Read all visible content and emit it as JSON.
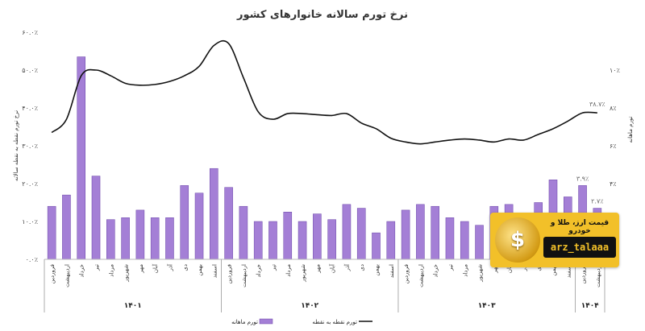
{
  "chart_data": {
    "type": "bar",
    "title": "نرخ تورم سالانه خانوارهای کشور",
    "ylabel": "نرخ تورم نقطه به نقطه سالانه",
    "y2label": "تورم ماهانه",
    "ylim": [
      0,
      60
    ],
    "y2lim": [
      0,
      12
    ],
    "yticks": [
      "۰.۰٪",
      "۱۰.۰٪",
      "۲۰.۰٪",
      "۳۰.۰٪",
      "۴۰.۰٪",
      "۵۰.۰٪",
      "۶۰.۰٪"
    ],
    "y2ticks": [
      "۰٪",
      "۲٪",
      "۴٪",
      "۶٪",
      "۸٪",
      "۱۰٪"
    ],
    "categories": [
      "فروردین",
      "اردیبهشت",
      "خرداد",
      "تیر",
      "مرداد",
      "شهریور",
      "مهر",
      "آبان",
      "آذر",
      "دی",
      "بهمن",
      "اسفند",
      "فروردین",
      "اردیبهشت",
      "خرداد",
      "تیر",
      "مرداد",
      "شهریور",
      "مهر",
      "آبان",
      "آذر",
      "دی",
      "بهمن",
      "اسفند",
      "فروردین",
      "اردیبهشت",
      "خرداد",
      "تیر",
      "مرداد",
      "شهریور",
      "مهر",
      "آبان",
      "آذر",
      "دی",
      "بهمن",
      "اسفند",
      "فروردین",
      "اردیبهشت"
    ],
    "years": [
      {
        "label": "۱۴۰۱",
        "start": 0,
        "end": 11
      },
      {
        "label": "۱۴۰۲",
        "start": 12,
        "end": 23
      },
      {
        "label": "۱۴۰۳",
        "start": 24,
        "end": 35
      },
      {
        "label": "۱۴۰۴",
        "start": 36,
        "end": 37
      }
    ],
    "series": [
      {
        "name": "تورم ماهانه",
        "type": "bar",
        "axis": "right",
        "color": "#a47fd6",
        "values": [
          2.8,
          3.4,
          10.7,
          4.4,
          2.1,
          2.2,
          2.6,
          2.2,
          2.2,
          3.9,
          3.5,
          4.8,
          3.8,
          2.8,
          2.0,
          2.0,
          2.5,
          2.0,
          2.4,
          2.1,
          2.9,
          2.7,
          1.4,
          2.0,
          2.6,
          2.9,
          2.8,
          2.2,
          2.0,
          1.8,
          2.8,
          2.9,
          2.4,
          3.0,
          4.2,
          3.3,
          3.9,
          2.7
        ]
      },
      {
        "name": "تورم نقطه به نقطه",
        "type": "line",
        "axis": "left",
        "color": "#111111",
        "values": [
          33.5,
          37.0,
          48.5,
          50.0,
          48.5,
          46.5,
          46.0,
          46.2,
          47.0,
          48.5,
          51.0,
          56.5,
          57.0,
          48.0,
          39.0,
          37.0,
          38.5,
          38.5,
          38.2,
          38.0,
          38.5,
          36.0,
          34.5,
          32.0,
          31.0,
          30.5,
          31.0,
          31.5,
          31.8,
          31.5,
          31.0,
          31.8,
          31.5,
          33.0,
          34.5,
          36.5,
          38.7,
          38.7
        ]
      }
    ],
    "annotations": [
      {
        "text": "۳۸.۷٪",
        "series": 1,
        "index": 37
      },
      {
        "text": "۳.۹٪",
        "series": 0,
        "index": 36
      },
      {
        "text": "۲.۷٪",
        "series": 0,
        "index": 37
      }
    ],
    "legend": "bottom",
    "grid": false
  },
  "watermark": {
    "top_text": "قیمت ارز، طلا و خودرو",
    "handle": "arz_talaaa",
    "symbol": "$"
  }
}
